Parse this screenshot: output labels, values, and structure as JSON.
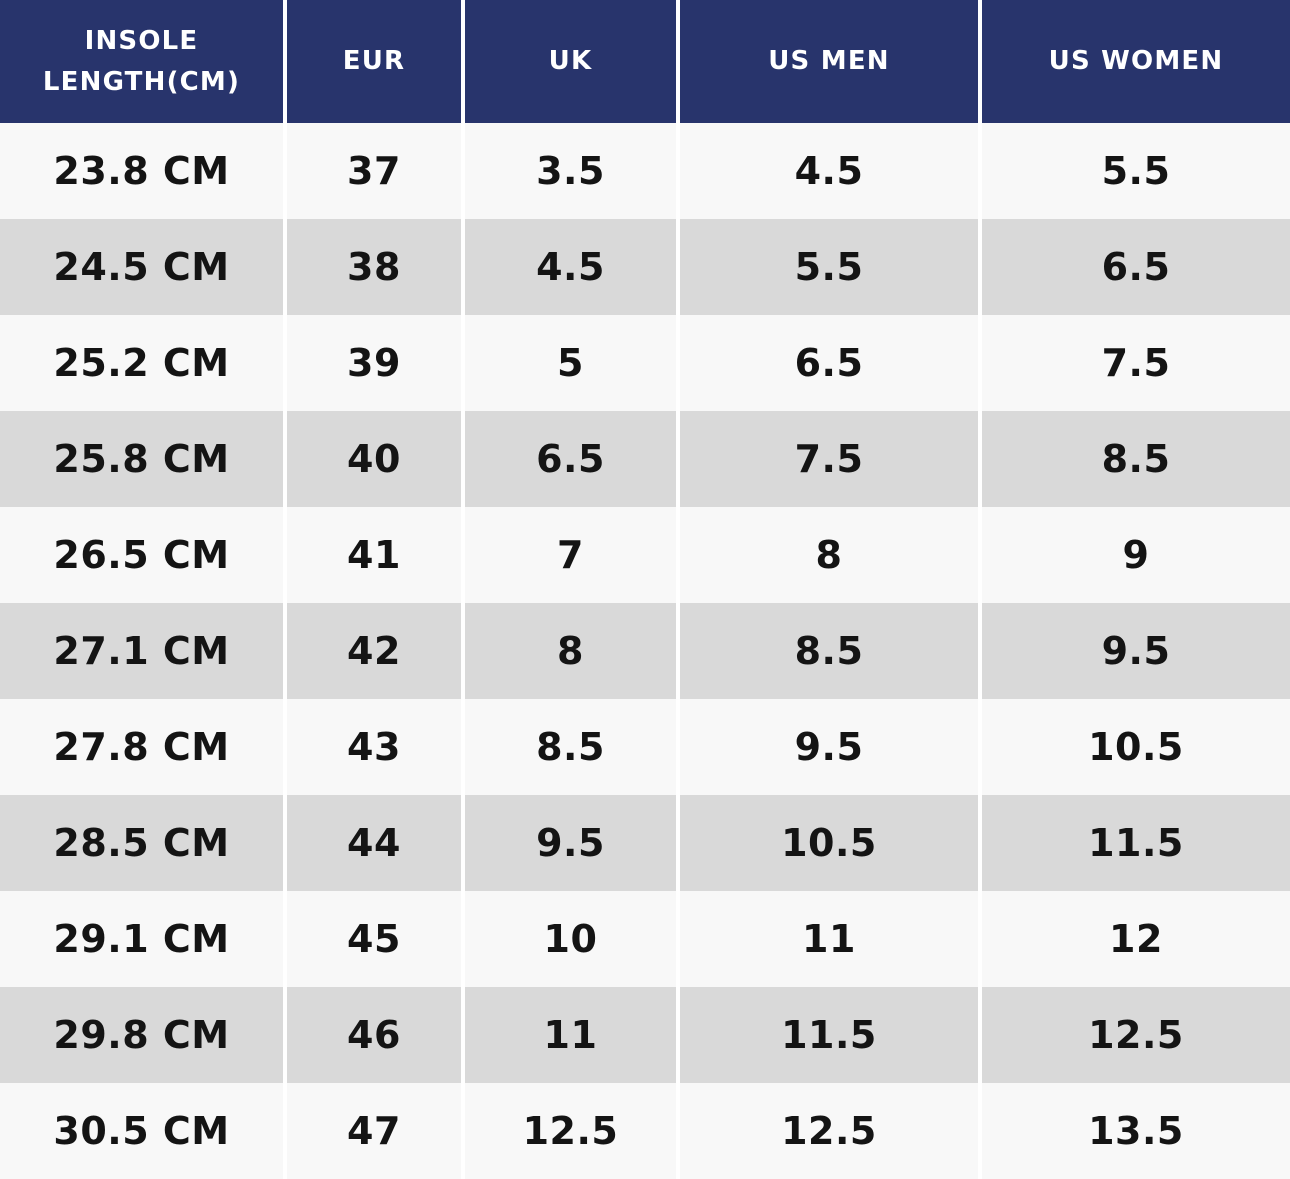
{
  "chart_data": {
    "type": "table",
    "columns": [
      "INSOLE LENGTH(CM)",
      "EUR",
      "UK",
      "US MEN",
      "US WOMEN"
    ],
    "rows": [
      [
        "23.8 CM",
        "37",
        "3.5",
        "4.5",
        "5.5"
      ],
      [
        "24.5 CM",
        "38",
        "4.5",
        "5.5",
        "6.5"
      ],
      [
        "25.2 CM",
        "39",
        "5",
        "6.5",
        "7.5"
      ],
      [
        "25.8 CM",
        "40",
        "6.5",
        "7.5",
        "8.5"
      ],
      [
        "26.5 CM",
        "41",
        "7",
        "8",
        "9"
      ],
      [
        "27.1 CM",
        "42",
        "8",
        "8.5",
        "9.5"
      ],
      [
        "27.8 CM",
        "43",
        "8.5",
        "9.5",
        "10.5"
      ],
      [
        "28.5 CM",
        "44",
        "9.5",
        "10.5",
        "11.5"
      ],
      [
        "29.1 CM",
        "45",
        "10",
        "11",
        "12"
      ],
      [
        "29.8 CM",
        "46",
        "11",
        "11.5",
        "12.5"
      ],
      [
        "30.5 CM",
        "47",
        "12.5",
        "12.5",
        "13.5"
      ]
    ],
    "layout": {
      "striped": true,
      "header_position": "top"
    }
  },
  "colors": {
    "header_bg": "#28346c",
    "header_text": "#ffffff",
    "row_odd_bg": "#f8f8f8",
    "row_even_bg": "#d9d9d9",
    "cell_text": "#141414",
    "divider": "#ffffff"
  }
}
